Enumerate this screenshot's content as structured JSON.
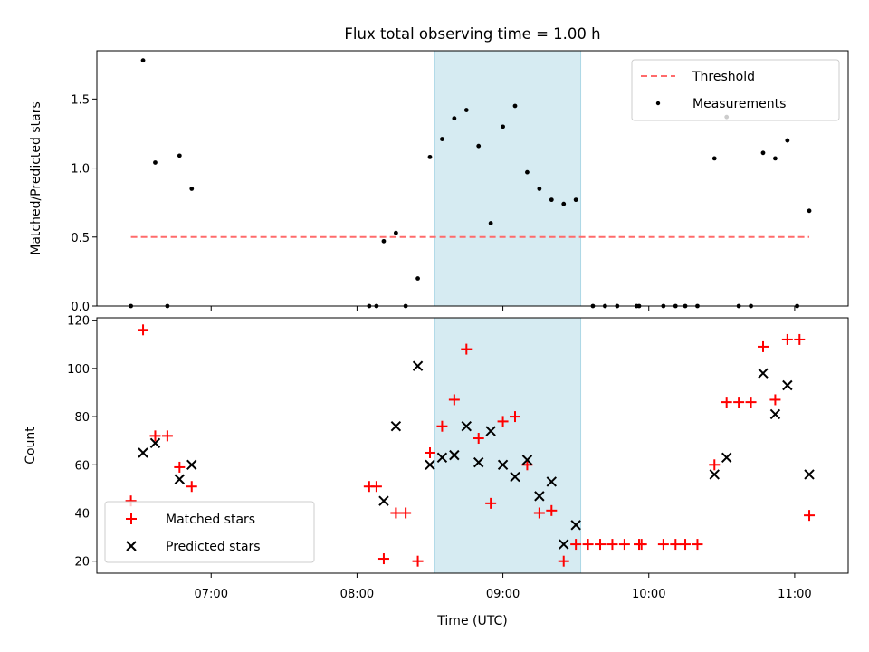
{
  "chart_data": [
    {
      "type": "scatter",
      "title": "Flux total observing time = 1.00 h",
      "xlabel": "",
      "ylabel": "Matched/Predicted stars",
      "xlim": [
        "06:13",
        "11:22"
      ],
      "ylim": [
        0,
        1.85
      ],
      "yticks": [
        "0.0",
        "0.5",
        "1.0",
        "1.5"
      ],
      "grid": false,
      "legend": {
        "position": "top-right",
        "entries": [
          "Threshold",
          "Measurements"
        ]
      },
      "shaded_region": {
        "x_start": "08:32",
        "x_end": "09:32",
        "color": "#add8e6"
      },
      "threshold": {
        "name": "Threshold",
        "y": 0.5,
        "x_start": "06:27",
        "x_end": "11:06",
        "color": "#ff6b6b",
        "style": "dashed"
      },
      "series": [
        {
          "name": "Measurements",
          "color": "#000000",
          "marker": "dot",
          "points": [
            [
              "06:27",
              0
            ],
            [
              "06:32",
              1.78
            ],
            [
              "06:37",
              1.04
            ],
            [
              "06:42",
              0
            ],
            [
              "06:47",
              1.09
            ],
            [
              "06:52",
              0.85
            ],
            [
              "08:05",
              0
            ],
            [
              "08:08",
              0
            ],
            [
              "08:11",
              0.47
            ],
            [
              "08:16",
              0.53
            ],
            [
              "08:20",
              0
            ],
            [
              "08:25",
              0.2
            ],
            [
              "08:30",
              1.08
            ],
            [
              "08:35",
              1.21
            ],
            [
              "08:40",
              1.36
            ],
            [
              "08:45",
              1.42
            ],
            [
              "08:50",
              1.16
            ],
            [
              "08:55",
              0.6
            ],
            [
              "09:00",
              1.3
            ],
            [
              "09:05",
              1.45
            ],
            [
              "09:10",
              0.97
            ],
            [
              "09:15",
              0.85
            ],
            [
              "09:20",
              0.77
            ],
            [
              "09:25",
              0.74
            ],
            [
              "09:30",
              0.77
            ],
            [
              "09:37",
              0
            ],
            [
              "09:42",
              0
            ],
            [
              "09:47",
              0
            ],
            [
              "09:55",
              0
            ],
            [
              "09:56",
              0
            ],
            [
              "10:06",
              0
            ],
            [
              "10:11",
              0
            ],
            [
              "10:15",
              0
            ],
            [
              "10:20",
              0
            ],
            [
              "10:27",
              1.07
            ],
            [
              "10:32",
              1.37
            ],
            [
              "10:37",
              0
            ],
            [
              "10:42",
              0
            ],
            [
              "10:47",
              1.11
            ],
            [
              "10:52",
              1.07
            ],
            [
              "10:57",
              1.2
            ],
            [
              "11:01",
              0
            ],
            [
              "11:06",
              0.69
            ]
          ]
        }
      ]
    },
    {
      "type": "scatter",
      "title": "",
      "xlabel": "Time (UTC)",
      "ylabel": "Count",
      "xlim": [
        "06:13",
        "11:22"
      ],
      "ylim": [
        15,
        121
      ],
      "xticks": [
        "07:00",
        "08:00",
        "09:00",
        "10:00",
        "11:00"
      ],
      "yticks": [
        "20",
        "40",
        "60",
        "80",
        "100",
        "120"
      ],
      "grid": false,
      "legend": {
        "position": "bottom-left",
        "entries": [
          "Matched stars",
          "Predicted stars"
        ]
      },
      "shaded_region": {
        "x_start": "08:32",
        "x_end": "09:32",
        "color": "#add8e6"
      },
      "series": [
        {
          "name": "Matched stars",
          "color": "#ff0000",
          "marker": "plus",
          "points": [
            [
              "06:27",
              45
            ],
            [
              "06:32",
              116
            ],
            [
              "06:37",
              72
            ],
            [
              "06:42",
              72
            ],
            [
              "06:47",
              59
            ],
            [
              "06:52",
              51
            ],
            [
              "08:05",
              51
            ],
            [
              "08:08",
              51
            ],
            [
              "08:11",
              21
            ],
            [
              "08:16",
              40
            ],
            [
              "08:20",
              40
            ],
            [
              "08:25",
              20
            ],
            [
              "08:30",
              65
            ],
            [
              "08:35",
              76
            ],
            [
              "08:40",
              87
            ],
            [
              "08:45",
              108
            ],
            [
              "08:50",
              71
            ],
            [
              "08:55",
              44
            ],
            [
              "09:00",
              78
            ],
            [
              "09:05",
              80
            ],
            [
              "09:10",
              60
            ],
            [
              "09:15",
              40
            ],
            [
              "09:20",
              41
            ],
            [
              "09:25",
              20
            ],
            [
              "09:30",
              27
            ],
            [
              "09:35",
              27
            ],
            [
              "09:40",
              27
            ],
            [
              "09:45",
              27
            ],
            [
              "09:50",
              27
            ],
            [
              "09:56",
              27
            ],
            [
              "09:57",
              27
            ],
            [
              "10:06",
              27
            ],
            [
              "10:11",
              27
            ],
            [
              "10:15",
              27
            ],
            [
              "10:20",
              27
            ],
            [
              "10:27",
              60
            ],
            [
              "10:32",
              86
            ],
            [
              "10:37",
              86
            ],
            [
              "10:42",
              86
            ],
            [
              "10:47",
              109
            ],
            [
              "10:52",
              87
            ],
            [
              "10:57",
              112
            ],
            [
              "11:02",
              112
            ],
            [
              "11:06",
              39
            ]
          ]
        },
        {
          "name": "Predicted stars",
          "color": "#000000",
          "marker": "x",
          "points": [
            [
              "06:32",
              65
            ],
            [
              "06:37",
              69
            ],
            [
              "06:47",
              54
            ],
            [
              "06:52",
              60
            ],
            [
              "08:11",
              45
            ],
            [
              "08:16",
              76
            ],
            [
              "08:25",
              101
            ],
            [
              "08:30",
              60
            ],
            [
              "08:35",
              63
            ],
            [
              "08:40",
              64
            ],
            [
              "08:45",
              76
            ],
            [
              "08:50",
              61
            ],
            [
              "08:55",
              74
            ],
            [
              "09:00",
              60
            ],
            [
              "09:05",
              55
            ],
            [
              "09:10",
              62
            ],
            [
              "09:15",
              47
            ],
            [
              "09:20",
              53
            ],
            [
              "09:25",
              27
            ],
            [
              "09:30",
              35
            ],
            [
              "10:27",
              56
            ],
            [
              "10:32",
              63
            ],
            [
              "10:47",
              98
            ],
            [
              "10:52",
              81
            ],
            [
              "10:57",
              93
            ],
            [
              "11:06",
              56
            ]
          ]
        }
      ]
    }
  ]
}
